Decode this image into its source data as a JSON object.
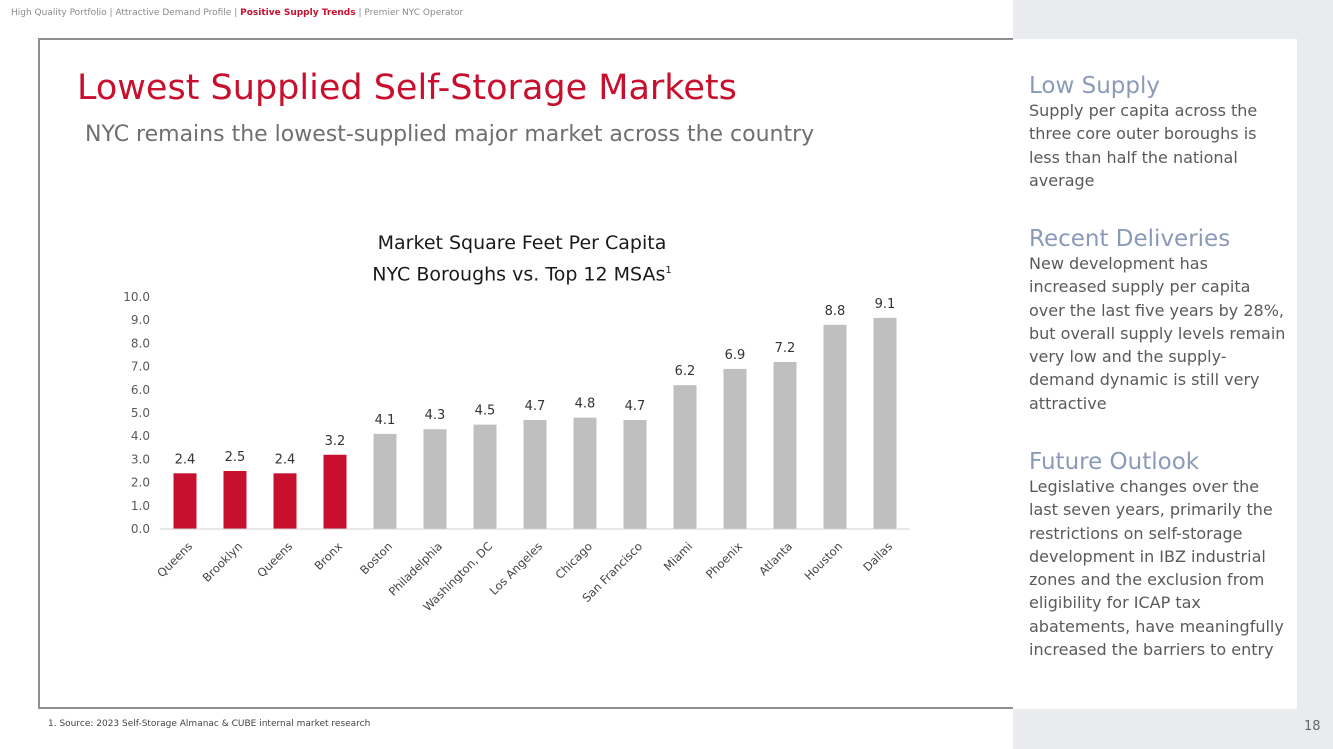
{
  "nav": {
    "item1": "High Quality Portfolio",
    "sep1": " | ",
    "item2": "Attractive Demand Profile",
    "sep2": " | ",
    "item3": "Positive Supply Trends",
    "sep3": " | ",
    "item4": "Premier NYC Operator"
  },
  "slide": {
    "title": "Lowest Supplied Self-Storage Markets",
    "subtitle": "NYC remains the lowest-supplied major market across the country"
  },
  "chart_data": {
    "type": "bar",
    "title_line1": "Market Square Feet Per Capita",
    "title_line2": "NYC Boroughs vs. Top 12 MSAs",
    "title_superscript": "1",
    "categories": [
      "Queens",
      "Brooklyn",
      "Queens",
      "Bronx",
      "Boston",
      "Philadelphia",
      "Washington, DC",
      "Los Angeles",
      "Chicago",
      "San Francisco",
      "Miami",
      "Phoenix",
      "Atlanta",
      "Houston",
      "Dallas"
    ],
    "values": [
      2.4,
      2.5,
      2.4,
      3.2,
      4.1,
      4.3,
      4.5,
      4.7,
      4.8,
      4.7,
      6.2,
      6.9,
      7.2,
      8.8,
      9.1
    ],
    "value_labels": [
      "2.4",
      "2.5",
      "2.4",
      "3.2",
      "4.1",
      "4.3",
      "4.5",
      "4.7",
      "4.8",
      "4.7",
      "6.2",
      "6.9",
      "7.2",
      "8.8",
      "9.1"
    ],
    "highlight": [
      true,
      true,
      true,
      true,
      false,
      false,
      false,
      false,
      false,
      false,
      false,
      false,
      false,
      false,
      false
    ],
    "ylim": [
      0,
      10
    ],
    "yticks": [
      "0.0",
      "1.0",
      "2.0",
      "3.0",
      "4.0",
      "5.0",
      "6.0",
      "7.0",
      "8.0",
      "9.0",
      "10.0"
    ],
    "xlabel": "",
    "ylabel": "",
    "grid": false,
    "colors": {
      "highlight": "#c8102e",
      "default": "#bfbfbf"
    }
  },
  "sidebar": {
    "sections": [
      {
        "heading": "Low Supply",
        "body": "Supply per capita across the three core outer boroughs is less than half the national average"
      },
      {
        "heading": "Recent Deliveries",
        "body": "New development has increased supply per capita over the last five years by 28%, but overall supply levels remain very low and the supply-demand dynamic is still very attractive"
      },
      {
        "heading": "Future Outlook",
        "body": "Legislative changes over the last seven years, primarily the restrictions on self-storage development in IBZ industrial zones and the exclusion from eligibility for ICAP tax abatements, have meaningfully increased the barriers to entry"
      }
    ]
  },
  "footnote": "1.   Source: 2023 Self-Storage Almanac & CUBE internal market research",
  "page_number": "18"
}
